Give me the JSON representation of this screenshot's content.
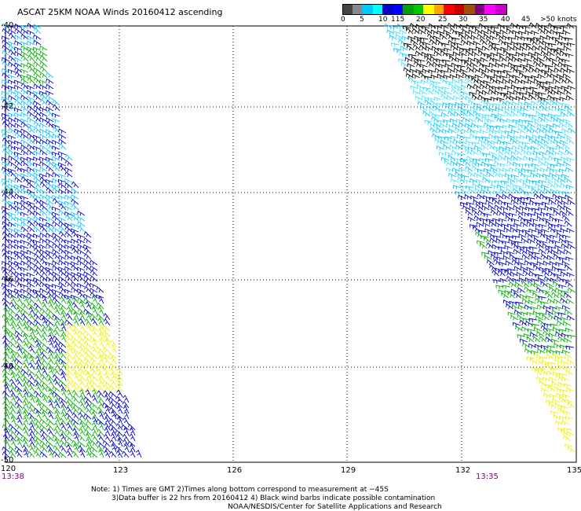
{
  "title": "ASCAT 25KM NOAA Winds 20160412 ascending",
  "legend": {
    "colors": [
      "#444444",
      "#888888",
      "#00c8ff",
      "#00ffff",
      "#0000c8",
      "#0000ff",
      "#00a000",
      "#00c800",
      "#ffff00",
      "#ffa500",
      "#ff0000",
      "#c80000",
      "#a05000",
      "#800080",
      "#ff00ff",
      "#c800c8"
    ],
    "labels": [
      "0",
      "5",
      "10",
      "115",
      "20",
      "25",
      "30",
      "35",
      "40",
      "45",
      ">50 knots"
    ]
  },
  "axes": {
    "x_ticks": [
      "120",
      "123",
      "126",
      "129",
      "132",
      "135"
    ],
    "y_ticks": [
      "-40",
      "-42",
      "-44",
      "-46",
      "-48",
      "-50"
    ]
  },
  "times": {
    "left": "13:38",
    "right": "13:35"
  },
  "notes": {
    "line1": "Note: 1) Times are GMT 2)Times along bottom correspond to measurement at −45S",
    "line2": "3)Data buffer is 22 hrs from 20160412 4) Black wind barbs indicate possible contamination",
    "line3": "NOAA/NESDIS/Center for Satellite Applications and Research"
  },
  "swath_colors": {
    "lightblue": "#00c8ff",
    "cyan": "#40e0ff",
    "blue": "#0000cc",
    "green": "#00b000",
    "yellow": "#f0f000",
    "black": "#000000"
  }
}
